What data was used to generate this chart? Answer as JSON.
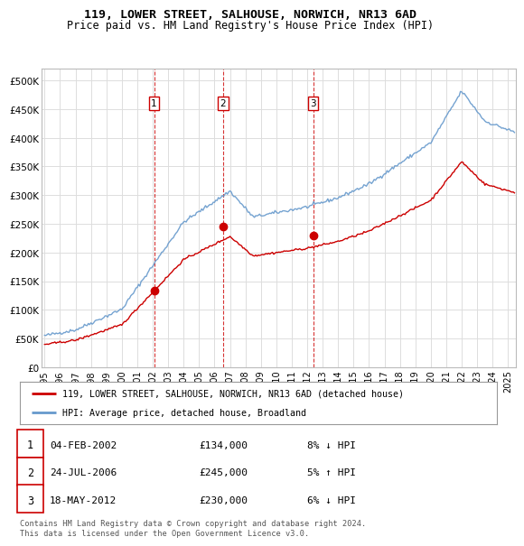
{
  "title_line1": "119, LOWER STREET, SALHOUSE, NORWICH, NR13 6AD",
  "title_line2": "Price paid vs. HM Land Registry's House Price Index (HPI)",
  "legend_label_red": "119, LOWER STREET, SALHOUSE, NORWICH, NR13 6AD (detached house)",
  "legend_label_blue": "HPI: Average price, detached house, Broadland",
  "transactions": [
    {
      "num": 1,
      "date": "04-FEB-2002",
      "price": "£134,000",
      "hpi": "8% ↓ HPI",
      "year": 2002.09
    },
    {
      "num": 2,
      "date": "24-JUL-2006",
      "price": "£245,000",
      "hpi": "5% ↑ HPI",
      "year": 2006.56
    },
    {
      "num": 3,
      "date": "18-MAY-2012",
      "price": "£230,000",
      "hpi": "6% ↓ HPI",
      "year": 2012.38
    }
  ],
  "transaction_prices": [
    134000,
    245000,
    230000
  ],
  "footer": "Contains HM Land Registry data © Crown copyright and database right 2024.\nThis data is licensed under the Open Government Licence v3.0.",
  "yticks": [
    0,
    50000,
    100000,
    150000,
    200000,
    250000,
    300000,
    350000,
    400000,
    450000,
    500000
  ],
  "ylabels": [
    "£0",
    "£50K",
    "£100K",
    "£150K",
    "£200K",
    "£250K",
    "£300K",
    "£350K",
    "£400K",
    "£450K",
    "£500K"
  ],
  "ymax": 520000,
  "red_color": "#cc0000",
  "blue_color": "#6699cc",
  "grid_color": "#dddddd",
  "bg_color": "#ffffff",
  "vline_color": "#cc0000",
  "xtick_labels": [
    "1995",
    "1996",
    "1997",
    "1998",
    "1999",
    "2000",
    "2001",
    "2002",
    "2003",
    "2004",
    "2005",
    "2006",
    "2007",
    "2008",
    "2009",
    "2010",
    "2011",
    "2012",
    "2013",
    "2014",
    "2015",
    "2016",
    "2017",
    "2018",
    "2019",
    "2020",
    "2021",
    "2022",
    "2023",
    "2024",
    "2025"
  ]
}
